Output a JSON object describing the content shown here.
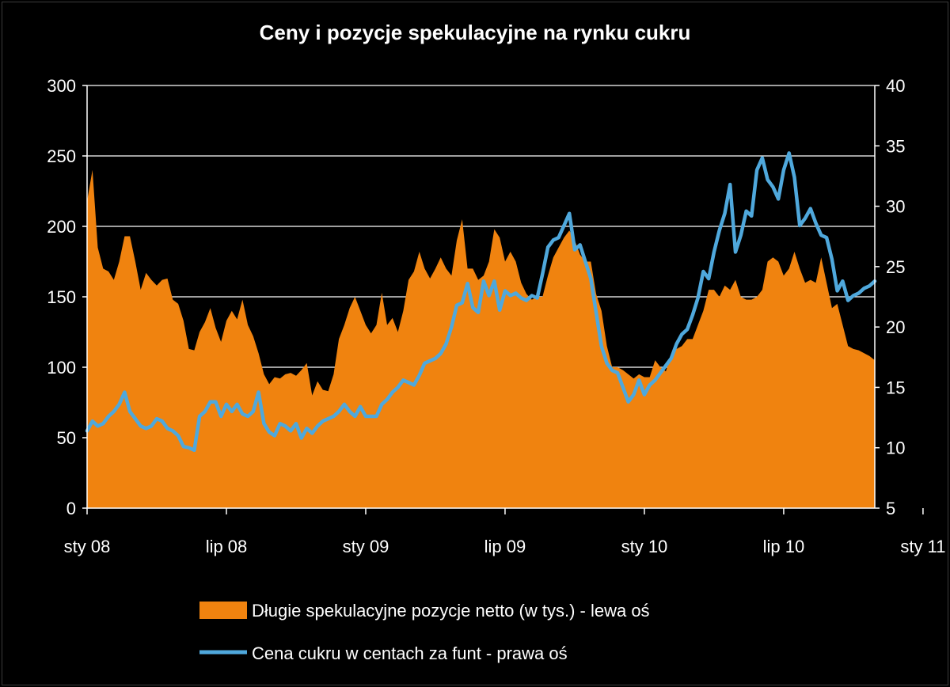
{
  "chart_data": {
    "type": "area",
    "title": "Ceny i pozycje spekulacyjne na rynku cukru",
    "xlabel": "",
    "ylabel": "",
    "x_tick_labels": [
      "sty 08",
      "lip 08",
      "sty 09",
      "lip 09",
      "sty 10",
      "lip 10",
      "sty 11"
    ],
    "y_left": {
      "min": 0,
      "max": 300,
      "ticks": [
        0,
        50,
        100,
        150,
        200,
        250,
        300
      ]
    },
    "y_right": {
      "min": 5,
      "max": 40,
      "ticks": [
        5,
        10,
        15,
        20,
        25,
        30,
        35,
        40
      ]
    },
    "grid": "horizontal",
    "legend_position": "bottom",
    "x_unit": "weeks",
    "series": [
      {
        "name": "Długie spekulacyjne pozycje netto (w tys.) - lewa oś",
        "type": "area",
        "axis": "left",
        "color": "#F0830F",
        "points": [
          [
            0,
            218
          ],
          [
            1,
            240
          ],
          [
            2,
            185
          ],
          [
            3,
            170
          ],
          [
            4,
            168
          ],
          [
            5,
            162
          ],
          [
            6,
            175
          ],
          [
            7,
            193
          ],
          [
            8,
            193
          ],
          [
            9,
            175
          ],
          [
            10,
            155
          ],
          [
            11,
            167
          ],
          [
            12,
            162
          ],
          [
            13,
            158
          ],
          [
            14,
            162
          ],
          [
            15,
            163
          ],
          [
            16,
            148
          ],
          [
            17,
            145
          ],
          [
            18,
            133
          ],
          [
            19,
            113
          ],
          [
            20,
            112
          ],
          [
            21,
            125
          ],
          [
            22,
            132
          ],
          [
            23,
            142
          ],
          [
            24,
            128
          ],
          [
            25,
            118
          ],
          [
            26,
            133
          ],
          [
            27,
            140
          ],
          [
            28,
            134
          ],
          [
            29,
            148
          ],
          [
            30,
            130
          ],
          [
            31,
            122
          ],
          [
            32,
            110
          ],
          [
            33,
            95
          ],
          [
            34,
            88
          ],
          [
            35,
            93
          ],
          [
            36,
            92
          ],
          [
            37,
            95
          ],
          [
            38,
            96
          ],
          [
            39,
            94
          ],
          [
            40,
            98
          ],
          [
            41,
            103
          ],
          [
            42,
            80
          ],
          [
            43,
            90
          ],
          [
            44,
            84
          ],
          [
            45,
            83
          ],
          [
            46,
            95
          ],
          [
            47,
            120
          ],
          [
            48,
            130
          ],
          [
            49,
            142
          ],
          [
            50,
            150
          ],
          [
            51,
            140
          ],
          [
            52,
            130
          ],
          [
            53,
            124
          ],
          [
            54,
            130
          ],
          [
            55,
            153
          ],
          [
            56,
            130
          ],
          [
            57,
            135
          ],
          [
            58,
            125
          ],
          [
            59,
            140
          ],
          [
            60,
            162
          ],
          [
            61,
            168
          ],
          [
            62,
            182
          ],
          [
            63,
            170
          ],
          [
            64,
            163
          ],
          [
            65,
            170
          ],
          [
            66,
            178
          ],
          [
            67,
            170
          ],
          [
            68,
            165
          ],
          [
            69,
            190
          ],
          [
            70,
            205
          ],
          [
            71,
            170
          ],
          [
            72,
            170
          ],
          [
            73,
            162
          ],
          [
            74,
            165
          ],
          [
            75,
            175
          ],
          [
            76,
            198
          ],
          [
            77,
            192
          ],
          [
            78,
            175
          ],
          [
            79,
            182
          ],
          [
            80,
            175
          ],
          [
            81,
            160
          ],
          [
            82,
            152
          ],
          [
            83,
            148
          ],
          [
            84,
            150
          ],
          [
            85,
            150
          ],
          [
            86,
            165
          ],
          [
            87,
            178
          ],
          [
            88,
            185
          ],
          [
            89,
            192
          ],
          [
            90,
            197
          ],
          [
            91,
            190
          ],
          [
            92,
            180
          ],
          [
            93,
            175
          ],
          [
            94,
            175
          ],
          [
            95,
            152
          ],
          [
            96,
            140
          ],
          [
            97,
            115
          ],
          [
            98,
            100
          ],
          [
            99,
            100
          ],
          [
            100,
            98
          ],
          [
            101,
            95
          ],
          [
            102,
            92
          ],
          [
            103,
            95
          ],
          [
            104,
            93
          ],
          [
            105,
            93
          ],
          [
            106,
            105
          ],
          [
            107,
            100
          ],
          [
            108,
            97
          ],
          [
            109,
            108
          ],
          [
            110,
            113
          ],
          [
            111,
            115
          ],
          [
            112,
            120
          ],
          [
            113,
            120
          ],
          [
            114,
            130
          ],
          [
            115,
            140
          ],
          [
            116,
            155
          ],
          [
            117,
            155
          ],
          [
            118,
            150
          ],
          [
            119,
            158
          ],
          [
            120,
            155
          ],
          [
            121,
            162
          ],
          [
            122,
            150
          ],
          [
            123,
            148
          ],
          [
            124,
            148
          ],
          [
            125,
            150
          ],
          [
            126,
            155
          ],
          [
            127,
            175
          ],
          [
            128,
            178
          ],
          [
            129,
            175
          ],
          [
            130,
            165
          ],
          [
            131,
            170
          ],
          [
            132,
            182
          ],
          [
            133,
            170
          ],
          [
            134,
            160
          ],
          [
            135,
            162
          ],
          [
            136,
            160
          ],
          [
            137,
            178
          ],
          [
            138,
            160
          ],
          [
            139,
            142
          ],
          [
            140,
            145
          ],
          [
            141,
            130
          ],
          [
            142,
            115
          ],
          [
            143,
            113
          ],
          [
            144,
            112
          ],
          [
            145,
            110
          ],
          [
            146,
            108
          ],
          [
            147,
            105
          ]
        ]
      },
      {
        "name": "Cena cukru w centach za funt - prawa oś",
        "type": "line",
        "axis": "right",
        "color": "#4FA8DC",
        "points": [
          [
            0,
            11.4
          ],
          [
            1,
            12.2
          ],
          [
            2,
            11.8
          ],
          [
            3,
            12.0
          ],
          [
            4,
            12.6
          ],
          [
            5,
            13.0
          ],
          [
            6,
            13.6
          ],
          [
            7,
            14.6
          ],
          [
            8,
            13.0
          ],
          [
            9,
            12.4
          ],
          [
            10,
            11.8
          ],
          [
            11,
            11.6
          ],
          [
            12,
            11.8
          ],
          [
            13,
            12.4
          ],
          [
            14,
            12.2
          ],
          [
            15,
            11.6
          ],
          [
            16,
            11.4
          ],
          [
            17,
            11.0
          ],
          [
            18,
            10.1
          ],
          [
            19,
            10.0
          ],
          [
            20,
            9.8
          ],
          [
            21,
            12.6
          ],
          [
            22,
            13.0
          ],
          [
            23,
            13.8
          ],
          [
            24,
            13.8
          ],
          [
            25,
            12.6
          ],
          [
            26,
            13.6
          ],
          [
            27,
            13.0
          ],
          [
            28,
            13.6
          ],
          [
            29,
            12.8
          ],
          [
            30,
            12.6
          ],
          [
            31,
            13.0
          ],
          [
            32,
            14.6
          ],
          [
            33,
            12.0
          ],
          [
            34,
            11.3
          ],
          [
            35,
            11.0
          ],
          [
            36,
            12.0
          ],
          [
            37,
            11.8
          ],
          [
            38,
            11.4
          ],
          [
            39,
            12.0
          ],
          [
            40,
            10.8
          ],
          [
            41,
            11.6
          ],
          [
            42,
            11.2
          ],
          [
            43,
            11.8
          ],
          [
            44,
            12.2
          ],
          [
            45,
            12.4
          ],
          [
            46,
            12.6
          ],
          [
            47,
            13.0
          ],
          [
            48,
            13.6
          ],
          [
            49,
            13.0
          ],
          [
            50,
            12.6
          ],
          [
            51,
            13.4
          ],
          [
            52,
            12.6
          ],
          [
            53,
            12.6
          ],
          [
            54,
            12.6
          ],
          [
            55,
            13.6
          ],
          [
            56,
            14.0
          ],
          [
            57,
            14.6
          ],
          [
            58,
            15.0
          ],
          [
            59,
            15.6
          ],
          [
            60,
            15.4
          ],
          [
            61,
            15.2
          ],
          [
            62,
            16.0
          ],
          [
            63,
            17.0
          ],
          [
            64,
            17.2
          ],
          [
            65,
            17.4
          ],
          [
            66,
            17.8
          ],
          [
            67,
            18.6
          ],
          [
            68,
            20.0
          ],
          [
            69,
            21.8
          ],
          [
            70,
            22.0
          ],
          [
            71,
            23.6
          ],
          [
            72,
            21.6
          ],
          [
            73,
            21.2
          ],
          [
            74,
            23.8
          ],
          [
            75,
            22.6
          ],
          [
            76,
            23.8
          ],
          [
            77,
            21.4
          ],
          [
            78,
            23.0
          ],
          [
            79,
            22.6
          ],
          [
            80,
            22.8
          ],
          [
            81,
            22.4
          ],
          [
            82,
            22.2
          ],
          [
            83,
            22.6
          ],
          [
            84,
            22.4
          ],
          [
            85,
            24.4
          ],
          [
            86,
            26.6
          ],
          [
            87,
            27.2
          ],
          [
            88,
            27.4
          ],
          [
            89,
            28.4
          ],
          [
            90,
            29.4
          ],
          [
            91,
            26.4
          ],
          [
            92,
            26.8
          ],
          [
            93,
            25.4
          ],
          [
            94,
            24.0
          ],
          [
            95,
            21.2
          ],
          [
            96,
            18.4
          ],
          [
            97,
            17.0
          ],
          [
            98,
            16.4
          ],
          [
            99,
            16.2
          ],
          [
            100,
            15.0
          ],
          [
            101,
            13.8
          ],
          [
            102,
            14.4
          ],
          [
            103,
            15.6
          ],
          [
            104,
            14.4
          ],
          [
            105,
            15.2
          ],
          [
            106,
            15.6
          ],
          [
            107,
            16.2
          ],
          [
            108,
            16.8
          ],
          [
            109,
            17.4
          ],
          [
            110,
            18.6
          ],
          [
            111,
            19.4
          ],
          [
            112,
            19.8
          ],
          [
            113,
            21.0
          ],
          [
            114,
            22.4
          ],
          [
            115,
            24.6
          ],
          [
            116,
            24.0
          ],
          [
            117,
            26.2
          ],
          [
            118,
            28.0
          ],
          [
            119,
            29.4
          ],
          [
            120,
            31.8
          ],
          [
            121,
            26.2
          ],
          [
            122,
            27.6
          ],
          [
            123,
            29.6
          ],
          [
            124,
            29.2
          ],
          [
            125,
            33.0
          ],
          [
            126,
            34.0
          ],
          [
            127,
            32.2
          ],
          [
            128,
            31.6
          ],
          [
            129,
            30.6
          ],
          [
            130,
            33.0
          ],
          [
            131,
            34.4
          ],
          [
            132,
            32.4
          ],
          [
            133,
            28.4
          ],
          [
            134,
            29.0
          ],
          [
            135,
            29.8
          ],
          [
            136,
            28.6
          ],
          [
            137,
            27.6
          ],
          [
            138,
            27.4
          ],
          [
            139,
            25.6
          ],
          [
            140,
            23.0
          ],
          [
            141,
            23.8
          ],
          [
            142,
            22.2
          ],
          [
            143,
            22.6
          ],
          [
            144,
            22.8
          ],
          [
            145,
            23.2
          ],
          [
            146,
            23.4
          ],
          [
            147,
            23.8
          ]
        ]
      }
    ]
  }
}
